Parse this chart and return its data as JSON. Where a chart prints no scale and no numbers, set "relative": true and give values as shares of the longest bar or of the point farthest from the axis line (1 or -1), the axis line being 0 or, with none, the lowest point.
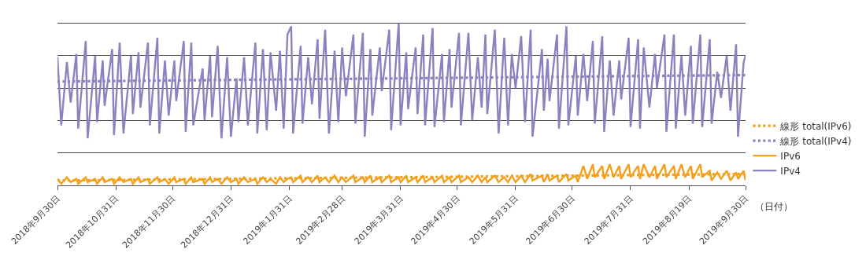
{
  "chart_data": {
    "type": "line",
    "relative": true,
    "grid": "y",
    "legend": "right",
    "marker": "none",
    "xlabel": "（日付）",
    "xlim": [
      "2018-09-30",
      "2019-09-30"
    ],
    "xticks": [
      {
        "value": "2018-09-30",
        "label": "2018年9月30日"
      },
      {
        "value": "2018-10-31",
        "label": "2018年10月31日"
      },
      {
        "value": "2018-11-30",
        "label": "2018年11月30日"
      },
      {
        "value": "2018-12-31",
        "label": "2018年12月31日"
      },
      {
        "value": "2019-01-31",
        "label": "2019年1月31日"
      },
      {
        "value": "2019-02-28",
        "label": "2019年2月28日"
      },
      {
        "value": "2019-03-31",
        "label": "2019年3月31日"
      },
      {
        "value": "2019-04-30",
        "label": "2019年4月30日"
      },
      {
        "value": "2019-05-31",
        "label": "2019年5月31日"
      },
      {
        "value": "2019-06-30",
        "label": "2019年6月30日"
      },
      {
        "value": "2019-07-31",
        "label": "2019年7月31日"
      },
      {
        "value": "2019-08-31",
        "label": "2019年8月19日"
      },
      {
        "value": "2019-09-30",
        "label": "2019年9月30日"
      }
    ],
    "x": [
      "2018-09-30",
      "2018-10-02",
      "2018-10-05",
      "2018-10-07",
      "2018-10-10",
      "2018-10-11",
      "2018-10-15",
      "2018-10-16",
      "2018-10-20",
      "2018-10-21",
      "2018-10-24",
      "2018-10-25",
      "2018-10-29",
      "2018-10-30",
      "2018-11-02",
      "2018-11-04",
      "2018-11-08",
      "2018-11-09",
      "2018-11-12",
      "2018-11-13",
      "2018-11-17",
      "2018-11-18",
      "2018-11-22",
      "2018-11-23",
      "2018-11-26",
      "2018-11-28",
      "2018-12-01",
      "2018-12-02",
      "2018-12-06",
      "2018-12-07",
      "2018-12-10",
      "2018-12-11",
      "2018-12-16",
      "2018-12-17",
      "2018-12-20",
      "2018-12-21",
      "2018-12-24",
      "2018-12-26",
      "2018-12-29",
      "2018-12-31",
      "2019-01-03",
      "2019-01-04",
      "2019-01-07",
      "2019-01-09",
      "2019-01-13",
      "2019-01-14",
      "2019-01-17",
      "2019-01-19",
      "2019-01-21",
      "2019-01-24",
      "2019-01-26",
      "2019-01-28",
      "2019-01-30",
      "2019-02-01",
      "2019-02-02",
      "2019-02-06",
      "2019-02-07",
      "2019-02-10",
      "2019-02-12",
      "2019-02-15",
      "2019-02-16",
      "2019-02-19",
      "2019-02-21",
      "2019-02-24",
      "2019-02-26",
      "2019-02-28",
      "2019-03-02",
      "2019-03-06",
      "2019-03-07",
      "2019-03-11",
      "2019-03-12",
      "2019-03-15",
      "2019-03-16",
      "2019-03-20",
      "2019-03-21",
      "2019-03-25",
      "2019-03-26",
      "2019-03-30",
      "2019-03-31",
      "2019-04-03",
      "2019-04-04",
      "2019-04-08",
      "2019-04-09",
      "2019-04-12",
      "2019-04-13",
      "2019-04-17",
      "2019-04-18",
      "2019-04-22",
      "2019-04-23",
      "2019-04-26",
      "2019-04-27",
      "2019-05-01",
      "2019-05-02",
      "2019-05-06",
      "2019-05-08",
      "2019-05-11",
      "2019-05-13",
      "2019-05-15",
      "2019-05-16",
      "2019-05-20",
      "2019-05-22",
      "2019-05-25",
      "2019-05-27",
      "2019-05-29",
      "2019-05-31",
      "2019-06-03",
      "2019-06-05",
      "2019-06-08",
      "2019-06-09",
      "2019-06-14",
      "2019-06-15",
      "2019-06-17",
      "2019-06-18",
      "2019-06-22",
      "2019-06-23",
      "2019-06-27",
      "2019-06-28",
      "2019-07-02",
      "2019-07-03",
      "2019-07-06",
      "2019-07-08",
      "2019-07-11",
      "2019-07-12",
      "2019-07-16",
      "2019-07-17",
      "2019-07-20",
      "2019-07-22",
      "2019-07-25",
      "2019-07-26",
      "2019-07-30",
      "2019-07-31",
      "2019-08-04",
      "2019-08-05",
      "2019-08-07",
      "2019-08-10",
      "2019-08-13",
      "2019-08-14",
      "2019-08-18",
      "2019-08-19",
      "2019-08-23",
      "2019-08-24",
      "2019-08-27",
      "2019-08-29",
      "2019-09-01",
      "2019-09-02",
      "2019-09-06",
      "2019-09-07",
      "2019-09-11",
      "2019-09-12",
      "2019-09-15",
      "2019-09-17",
      "2019-09-20",
      "2019-09-22",
      "2019-09-25",
      "2019-09-26",
      "2019-09-29",
      "2019-09-30"
    ],
    "series": [
      {
        "name": "線形 total(IPv6)",
        "color": "#f5a01a",
        "line_style": "dotted",
        "x": [
          "2018-09-30",
          "2019-09-30"
        ],
        "values": [
          0.03,
          0.07
        ]
      },
      {
        "name": "線形 total(IPv4)",
        "color": "#8c82c0",
        "line_style": "dotted",
        "x": [
          "2018-09-30",
          "2019-09-30"
        ],
        "values": [
          0.64,
          0.68
        ]
      },
      {
        "name": "IPv6",
        "color": "#f5a01a",
        "line_style": "solid",
        "values": [
          0.04,
          0.01,
          0.05,
          0.02,
          0.04,
          0.01,
          0.05,
          0.02,
          0.04,
          0.01,
          0.05,
          0.02,
          0.04,
          0.01,
          0.05,
          0.02,
          0.04,
          0.01,
          0.05,
          0.02,
          0.04,
          0.01,
          0.05,
          0.02,
          0.04,
          0.01,
          0.05,
          0.02,
          0.04,
          0.01,
          0.05,
          0.02,
          0.04,
          0.01,
          0.05,
          0.02,
          0.04,
          0.01,
          0.05,
          0.02,
          0.04,
          0.01,
          0.05,
          0.02,
          0.04,
          0.01,
          0.05,
          0.02,
          0.04,
          0.01,
          0.05,
          0.02,
          0.04,
          0.05,
          0.02,
          0.06,
          0.02,
          0.05,
          0.02,
          0.06,
          0.02,
          0.05,
          0.02,
          0.06,
          0.02,
          0.05,
          0.02,
          0.06,
          0.02,
          0.05,
          0.02,
          0.06,
          0.02,
          0.05,
          0.02,
          0.06,
          0.02,
          0.05,
          0.02,
          0.06,
          0.02,
          0.05,
          0.02,
          0.06,
          0.02,
          0.05,
          0.02,
          0.06,
          0.02,
          0.05,
          0.02,
          0.06,
          0.02,
          0.05,
          0.02,
          0.06,
          0.02,
          0.05,
          0.02,
          0.06,
          0.02,
          0.05,
          0.02,
          0.06,
          0.02,
          0.06,
          0.02,
          0.07,
          0.03,
          0.06,
          0.02,
          0.07,
          0.03,
          0.06,
          0.02,
          0.07,
          0.03,
          0.06,
          0.02,
          0.12,
          0.04,
          0.13,
          0.05,
          0.12,
          0.04,
          0.13,
          0.05,
          0.12,
          0.04,
          0.13,
          0.05,
          0.12,
          0.04,
          0.13,
          0.05,
          0.12,
          0.04,
          0.13,
          0.05,
          0.12,
          0.04,
          0.13,
          0.05,
          0.12,
          0.04,
          0.13,
          0.05,
          0.09,
          0.03,
          0.08,
          0.04,
          0.09,
          0.03,
          0.08,
          0.04,
          0.09,
          0.03
        ]
      },
      {
        "name": "IPv4",
        "color": "#8c82c0",
        "line_style": "solid",
        "values": [
          0.79,
          0.37,
          0.76,
          0.51,
          0.81,
          0.35,
          0.89,
          0.29,
          0.8,
          0.39,
          0.77,
          0.49,
          0.84,
          0.31,
          0.88,
          0.32,
          0.8,
          0.44,
          0.82,
          0.48,
          0.88,
          0.37,
          0.91,
          0.32,
          0.77,
          0.43,
          0.77,
          0.52,
          0.89,
          0.33,
          0.88,
          0.37,
          0.72,
          0.4,
          0.8,
          0.42,
          0.86,
          0.29,
          0.79,
          0.3,
          0.66,
          0.39,
          0.79,
          0.37,
          0.88,
          0.32,
          0.84,
          0.34,
          0.82,
          0.46,
          0.83,
          0.35,
          0.93,
          0.98,
          0.32,
          0.86,
          0.38,
          0.79,
          0.5,
          0.9,
          0.41,
          0.96,
          0.32,
          0.83,
          0.39,
          0.85,
          0.55,
          0.93,
          0.38,
          0.94,
          0.3,
          0.84,
          0.43,
          0.85,
          0.58,
          0.96,
          0.34,
          1.0,
          0.37,
          0.82,
          0.47,
          0.85,
          0.44,
          0.93,
          0.37,
          0.97,
          0.36,
          0.81,
          0.39,
          0.84,
          0.48,
          0.94,
          0.37,
          0.94,
          0.4,
          0.79,
          0.48,
          0.93,
          0.44,
          0.96,
          0.32,
          0.91,
          0.37,
          0.81,
          0.6,
          0.92,
          0.39,
          0.96,
          0.3,
          0.84,
          0.46,
          0.78,
          0.52,
          0.93,
          0.35,
          0.98,
          0.37,
          0.8,
          0.43,
          0.81,
          0.52,
          0.89,
          0.38,
          0.92,
          0.33,
          0.77,
          0.43,
          0.77,
          0.53,
          0.91,
          0.36,
          0.9,
          0.35,
          0.85,
          0.48,
          0.81,
          0.6,
          0.93,
          0.33,
          0.93,
          0.35,
          0.8,
          0.43,
          0.86,
          0.38,
          0.93,
          0.36,
          0.9,
          0.38,
          0.7,
          0.54,
          0.8,
          0.46,
          0.87,
          0.3,
          0.76,
          0.8
        ]
      }
    ]
  }
}
